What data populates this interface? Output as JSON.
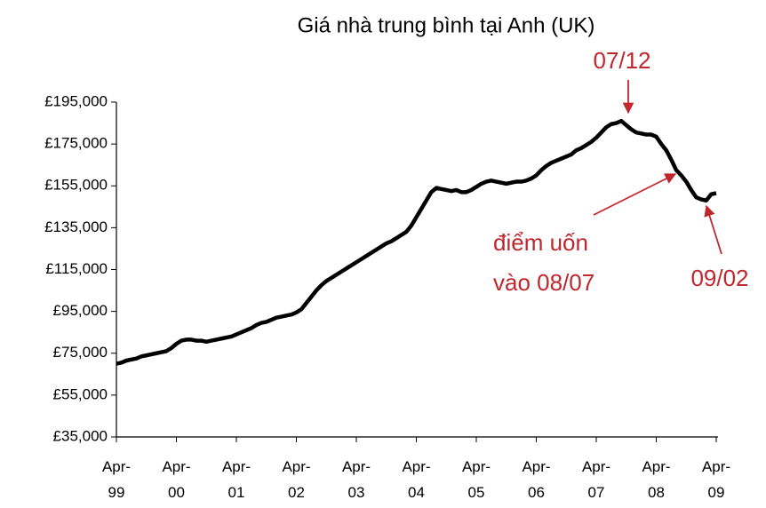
{
  "chart_data": {
    "type": "line",
    "title": "Giá nhà trung bình tại  Anh (UK)",
    "x": [
      "1999-04",
      "1999-05",
      "1999-06",
      "1999-07",
      "1999-08",
      "1999-09",
      "1999-10",
      "1999-11",
      "1999-12",
      "2000-01",
      "2000-02",
      "2000-03",
      "2000-04",
      "2000-05",
      "2000-06",
      "2000-07",
      "2000-08",
      "2000-09",
      "2000-10",
      "2000-11",
      "2000-12",
      "2001-01",
      "2001-02",
      "2001-03",
      "2001-04",
      "2001-05",
      "2001-06",
      "2001-07",
      "2001-08",
      "2001-09",
      "2001-10",
      "2001-11",
      "2001-12",
      "2002-01",
      "2002-02",
      "2002-03",
      "2002-04",
      "2002-05",
      "2002-06",
      "2002-07",
      "2002-08",
      "2002-09",
      "2002-10",
      "2002-11",
      "2002-12",
      "2003-01",
      "2003-02",
      "2003-03",
      "2003-04",
      "2003-05",
      "2003-06",
      "2003-07",
      "2003-08",
      "2003-09",
      "2003-10",
      "2003-11",
      "2003-12",
      "2004-01",
      "2004-02",
      "2004-03",
      "2004-04",
      "2004-05",
      "2004-06",
      "2004-07",
      "2004-08",
      "2004-09",
      "2004-10",
      "2004-11",
      "2004-12",
      "2005-01",
      "2005-02",
      "2005-03",
      "2005-04",
      "2005-05",
      "2005-06",
      "2005-07",
      "2005-08",
      "2005-09",
      "2005-10",
      "2005-11",
      "2005-12",
      "2006-01",
      "2006-02",
      "2006-03",
      "2006-04",
      "2006-05",
      "2006-06",
      "2006-07",
      "2006-08",
      "2006-09",
      "2006-10",
      "2006-11",
      "2006-12",
      "2007-01",
      "2007-02",
      "2007-03",
      "2007-04",
      "2007-05",
      "2007-06",
      "2007-07",
      "2007-08",
      "2007-09",
      "2007-10",
      "2007-11",
      "2007-12",
      "2008-01",
      "2008-02",
      "2008-03",
      "2008-04",
      "2008-05",
      "2008-06",
      "2008-07",
      "2008-08",
      "2008-09",
      "2008-10",
      "2008-11",
      "2008-12",
      "2009-01",
      "2009-02",
      "2009-03",
      "2009-04"
    ],
    "series": [
      {
        "name": "Giá nhà",
        "color": "#000000",
        "values": [
          70000,
          70500,
          71500,
          72000,
          72500,
          73500,
          74000,
          74500,
          75000,
          75500,
          76000,
          77500,
          79500,
          81000,
          81500,
          81500,
          81000,
          81000,
          80500,
          81000,
          81500,
          82000,
          82500,
          83000,
          84000,
          85000,
          86000,
          87000,
          88500,
          89500,
          90000,
          91000,
          92000,
          92500,
          93000,
          93500,
          94500,
          96000,
          99000,
          102000,
          105000,
          107500,
          109500,
          111000,
          112500,
          114000,
          115500,
          117000,
          118500,
          120000,
          121500,
          123000,
          124500,
          126000,
          127500,
          128500,
          130000,
          131500,
          133000,
          136000,
          140000,
          144000,
          148000,
          152000,
          154000,
          153500,
          153000,
          152500,
          153000,
          152000,
          152000,
          153000,
          154500,
          156000,
          157000,
          157500,
          157000,
          156500,
          156000,
          156500,
          157000,
          157000,
          157500,
          158500,
          160000,
          162500,
          164500,
          166000,
          167000,
          168000,
          169000,
          170000,
          172000,
          173000,
          174500,
          176000,
          178000,
          180500,
          183000,
          184500,
          185000,
          186000,
          184000,
          182000,
          180500,
          180000,
          179500,
          179500,
          178500,
          175000,
          172000,
          167500,
          162500,
          160000,
          157000,
          153000,
          149500,
          148500,
          148000,
          151000,
          151500
        ]
      }
    ],
    "ylim": [
      35000,
      195000
    ],
    "yticks": [
      {
        "value": 35000,
        "label": "£35,000"
      },
      {
        "value": 55000,
        "label": "£55,000"
      },
      {
        "value": 75000,
        "label": "£75,000"
      },
      {
        "value": 95000,
        "label": "£95,000"
      },
      {
        "value": 115000,
        "label": "£115,000"
      },
      {
        "value": 135000,
        "label": "£135,000"
      },
      {
        "value": 155000,
        "label": "£155,000"
      },
      {
        "value": 175000,
        "label": "£175,000"
      },
      {
        "value": 195000,
        "label": "£195,000"
      }
    ],
    "xticks": [
      {
        "value": "1999-04",
        "label": "Apr-99"
      },
      {
        "value": "2000-04",
        "label": "Apr-00"
      },
      {
        "value": "2001-04",
        "label": "Apr-01"
      },
      {
        "value": "2002-04",
        "label": "Apr-02"
      },
      {
        "value": "2003-04",
        "label": "Apr-03"
      },
      {
        "value": "2004-04",
        "label": "Apr-04"
      },
      {
        "value": "2005-04",
        "label": "Apr-05"
      },
      {
        "value": "2006-04",
        "label": "Apr-06"
      },
      {
        "value": "2007-04",
        "label": "Apr-07"
      },
      {
        "value": "2008-04",
        "label": "Apr-08"
      },
      {
        "value": "2009-04",
        "label": "Apr-09"
      }
    ],
    "annotations": [
      {
        "text": "07/12"
      },
      {
        "text": "điểm uốn"
      },
      {
        "text": "vào 08/07"
      },
      {
        "text": "09/02"
      }
    ],
    "annotation_color": "#c0272d"
  }
}
